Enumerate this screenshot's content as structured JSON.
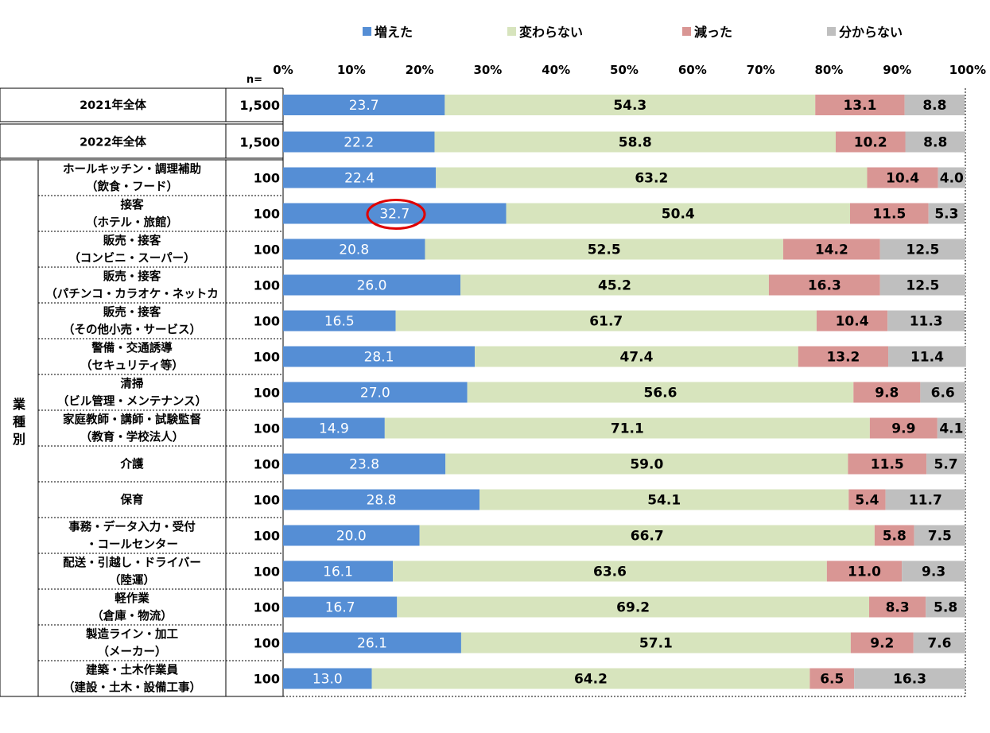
{
  "chart_data": {
    "type": "bar",
    "orientation": "horizontal",
    "stacked": true,
    "xlim": [
      0,
      100
    ],
    "x_ticks": [
      "0%",
      "10%",
      "20%",
      "30%",
      "40%",
      "50%",
      "60%",
      "70%",
      "80%",
      "90%",
      "100%"
    ],
    "n_label": "n=",
    "group_label": "業種別",
    "legend": [
      {
        "name": "増えた",
        "color": "#558ed5"
      },
      {
        "name": "変わらない",
        "color": "#d7e4bd"
      },
      {
        "name": "減った",
        "color": "#d99694"
      },
      {
        "name": "分からない",
        "color": "#bfbfbf"
      }
    ],
    "rows": [
      {
        "label1": "2021年全体",
        "label2": "",
        "n": "1,500",
        "values": [
          23.7,
          54.3,
          13.1,
          8.8
        ]
      },
      {
        "label1": "2022年全体",
        "label2": "",
        "n": "1,500",
        "values": [
          22.2,
          58.8,
          10.2,
          8.8
        ]
      },
      {
        "label1": "ホールキッチン・調理補助",
        "label2": "（飲食・フード）",
        "n": "100",
        "values": [
          22.4,
          63.2,
          10.4,
          4.0
        ]
      },
      {
        "label1": "接客",
        "label2": "（ホテル・旅館）",
        "n": "100",
        "values": [
          32.7,
          50.4,
          11.5,
          5.3
        ],
        "highlight": true
      },
      {
        "label1": "販売・接客",
        "label2": "（コンビニ・スーパー）",
        "n": "100",
        "values": [
          20.8,
          52.5,
          14.2,
          12.5
        ]
      },
      {
        "label1": "販売・接客",
        "label2": "（パチンコ・カラオケ・ネットカ",
        "n": "100",
        "values": [
          26.0,
          45.2,
          16.3,
          12.5
        ]
      },
      {
        "label1": "販売・接客",
        "label2": "（その他小売・サービス）",
        "n": "100",
        "values": [
          16.5,
          61.7,
          10.4,
          11.3
        ]
      },
      {
        "label1": "警備・交通誘導",
        "label2": "（セキュリティ等）",
        "n": "100",
        "values": [
          28.1,
          47.4,
          13.2,
          11.4
        ]
      },
      {
        "label1": "清掃",
        "label2": "（ビル管理・メンテナンス）",
        "n": "100",
        "values": [
          27.0,
          56.6,
          9.8,
          6.6
        ]
      },
      {
        "label1": "家庭教師・講師・試験監督",
        "label2": "（教育・学校法人）",
        "n": "100",
        "values": [
          14.9,
          71.1,
          9.9,
          4.1
        ]
      },
      {
        "label1": "介護",
        "label2": "",
        "n": "100",
        "values": [
          23.8,
          59.0,
          11.5,
          5.7
        ]
      },
      {
        "label1": "保育",
        "label2": "",
        "n": "100",
        "values": [
          28.8,
          54.1,
          5.4,
          11.7
        ]
      },
      {
        "label1": "事務・データ入力・受付",
        "label2": "・コールセンター",
        "n": "100",
        "values": [
          20.0,
          66.7,
          5.8,
          7.5
        ]
      },
      {
        "label1": "配送・引越し・ドライバー",
        "label2": "（陸運）",
        "n": "100",
        "values": [
          16.1,
          63.6,
          11.0,
          9.3
        ]
      },
      {
        "label1": "軽作業",
        "label2": "（倉庫・物流）",
        "n": "100",
        "values": [
          16.7,
          69.2,
          8.3,
          5.8
        ]
      },
      {
        "label1": "製造ライン・加工",
        "label2": "（メーカー）",
        "n": "100",
        "values": [
          26.1,
          57.1,
          9.2,
          7.6
        ]
      },
      {
        "label1": "建築・土木作業員",
        "label2": "（建設・土木・設備工事）",
        "n": "100",
        "values": [
          13.0,
          64.2,
          6.5,
          16.3
        ]
      }
    ]
  }
}
